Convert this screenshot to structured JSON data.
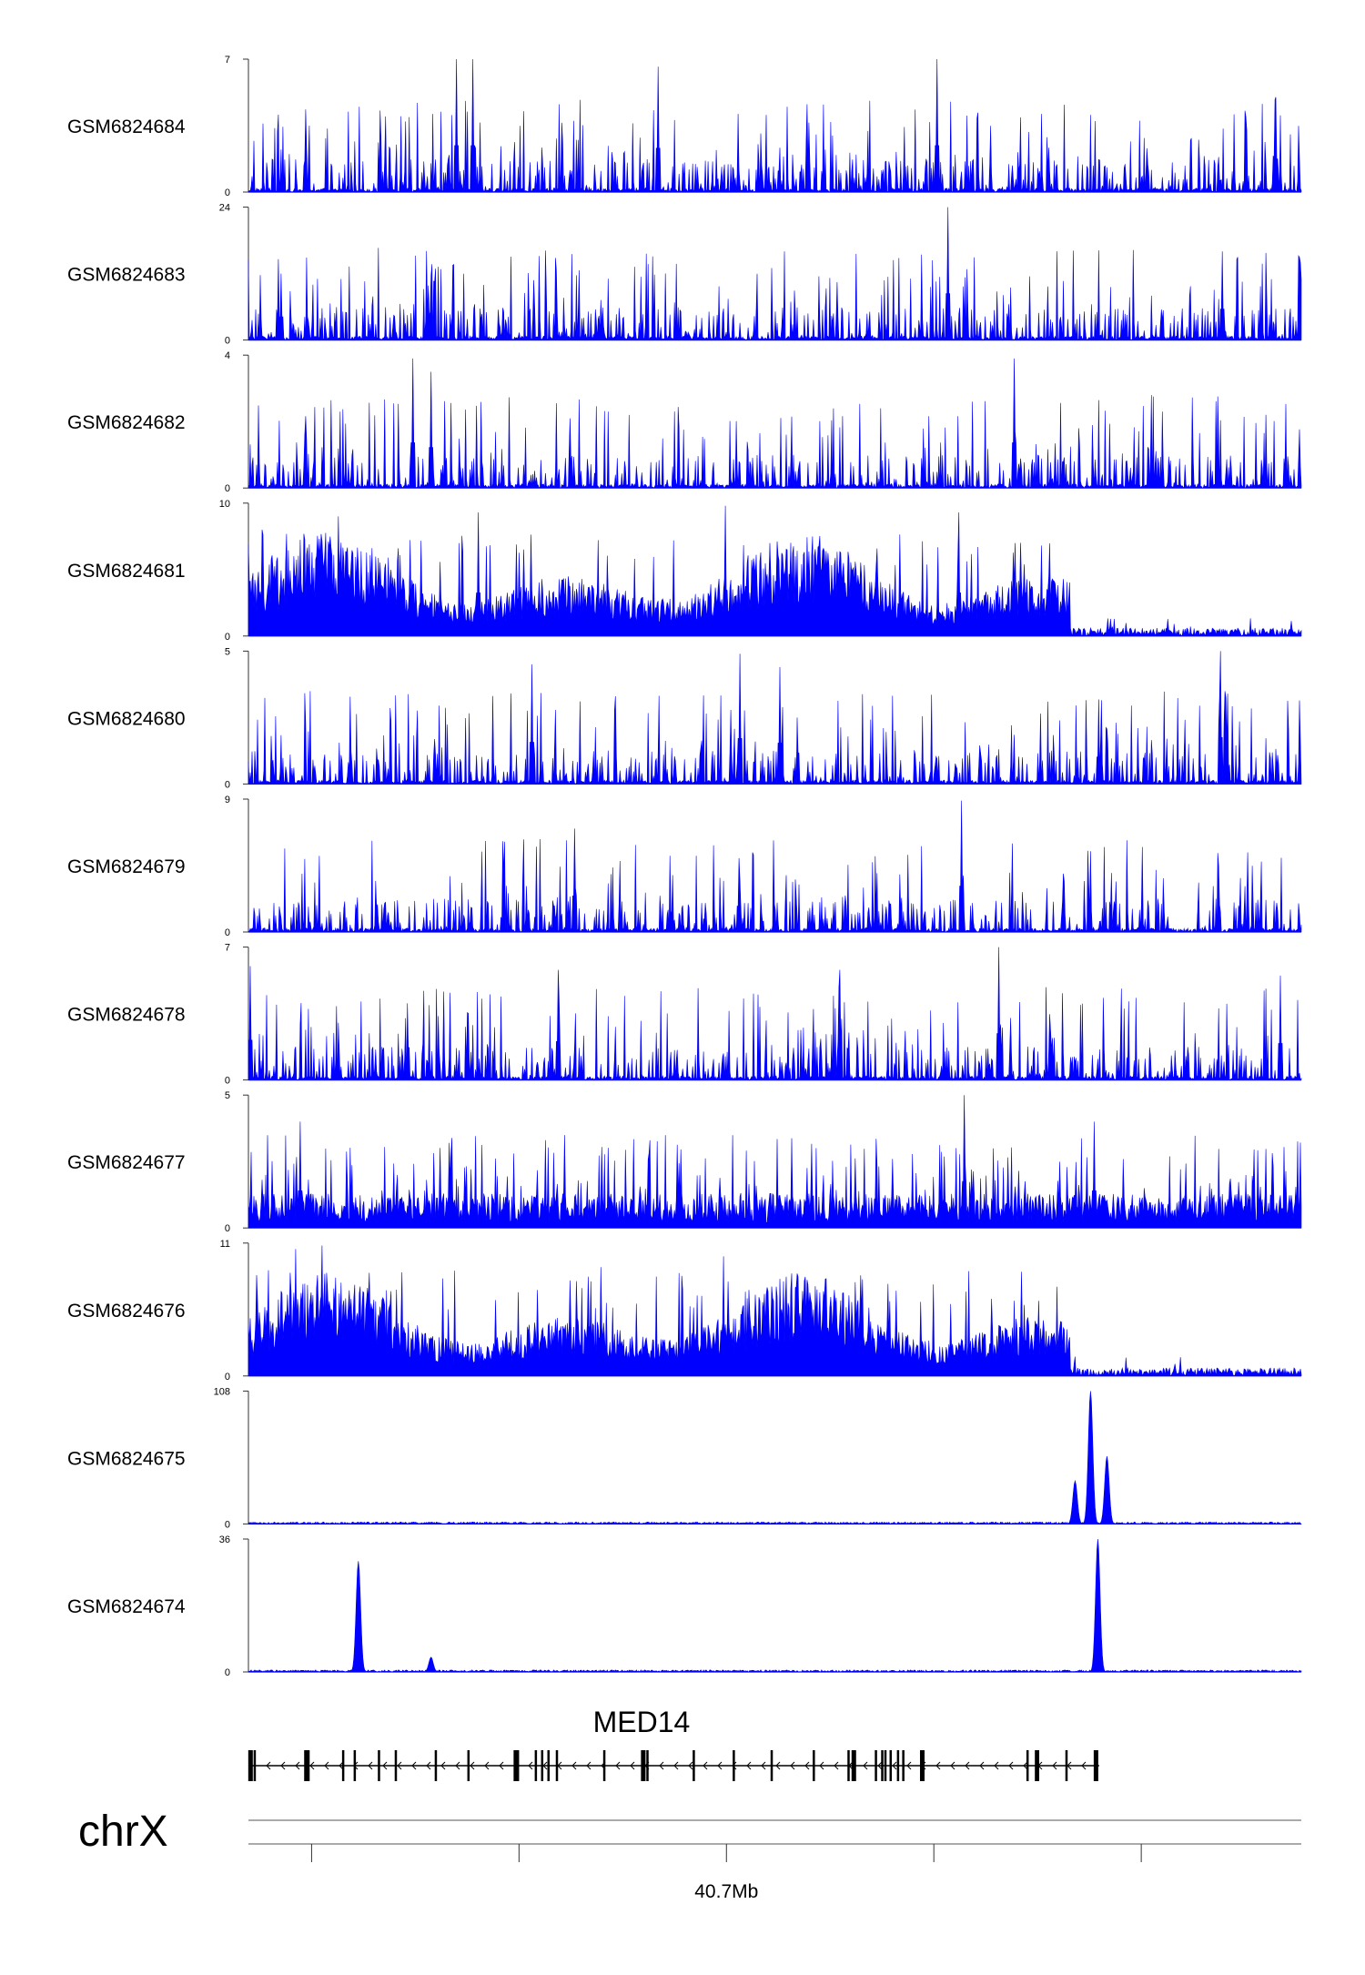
{
  "chart_data": {
    "type": "area",
    "colors": {
      "signal": "#0000ff",
      "axis": "#333333",
      "gene": "#000000"
    },
    "tracks": [
      {
        "name": "GSM6824684",
        "ymin": 0,
        "ymax": 7,
        "profile": "sparse",
        "peaks": [
          [
            0.198,
            7
          ],
          [
            0.213,
            7
          ],
          [
            0.389,
            6.6
          ],
          [
            0.654,
            7
          ],
          [
            0.976,
            5
          ]
        ]
      },
      {
        "name": "GSM6824683",
        "ymin": 0,
        "ymax": 24,
        "profile": "sparse",
        "peaks": [
          [
            0.031,
            12
          ],
          [
            0.664,
            24
          ],
          [
            0.925,
            16
          ]
        ]
      },
      {
        "name": "GSM6824682",
        "ymin": 0,
        "ymax": 4,
        "profile": "sparse",
        "peaks": [
          [
            0.156,
            3.9
          ],
          [
            0.173,
            3.5
          ],
          [
            0.727,
            3.9
          ]
        ]
      },
      {
        "name": "GSM6824681",
        "ymin": 0,
        "ymax": 10,
        "profile": "dense",
        "cutoff": 0.78,
        "peaks": [
          [
            0.013,
            8
          ],
          [
            0.085,
            9
          ],
          [
            0.218,
            9.3
          ],
          [
            0.453,
            9.8
          ],
          [
            0.675,
            9.3
          ],
          [
            0.728,
            7
          ]
        ]
      },
      {
        "name": "GSM6824680",
        "ymin": 0,
        "ymax": 5,
        "profile": "sparse",
        "peaks": [
          [
            0.269,
            4.5
          ],
          [
            0.467,
            4.9
          ],
          [
            0.505,
            4.4
          ],
          [
            0.923,
            5
          ]
        ]
      },
      {
        "name": "GSM6824679",
        "ymin": 0,
        "ymax": 9,
        "profile": "sparse",
        "peaks": [
          [
            0.31,
            7
          ],
          [
            0.677,
            8.9
          ],
          [
            0.466,
            5
          ]
        ]
      },
      {
        "name": "GSM6824678",
        "ymin": 0,
        "ymax": 7,
        "profile": "sparse",
        "peaks": [
          [
            0.002,
            6
          ],
          [
            0.294,
            5.8
          ],
          [
            0.562,
            5.8
          ],
          [
            0.713,
            7
          ],
          [
            0.98,
            5.5
          ]
        ]
      },
      {
        "name": "GSM6824677",
        "ymin": 0,
        "ymax": 5,
        "profile": "medium",
        "peaks": [
          [
            0.049,
            4
          ],
          [
            0.68,
            5
          ],
          [
            0.803,
            4
          ]
        ]
      },
      {
        "name": "GSM6824676",
        "ymin": 0,
        "ymax": 11,
        "profile": "dense",
        "cutoff": 0.78,
        "peaks": [
          [
            0.045,
            10.5
          ],
          [
            0.07,
            10.8
          ],
          [
            0.335,
            9
          ],
          [
            0.451,
            9.9
          ],
          [
            0.583,
            8
          ]
        ]
      },
      {
        "name": "GSM6824675",
        "ymin": 0,
        "ymax": 108,
        "profile": "flat",
        "peaks": [
          [
            0.8,
            108
          ],
          [
            0.815,
            55
          ],
          [
            0.785,
            35
          ]
        ]
      },
      {
        "name": "GSM6824674",
        "ymin": 0,
        "ymax": 36,
        "profile": "flat",
        "peaks": [
          [
            0.104,
            30
          ],
          [
            0.807,
            36
          ],
          [
            0.173,
            4
          ]
        ]
      }
    ],
    "gene": {
      "name": "MED14",
      "strand": "minus",
      "start_frac": 0.0,
      "end_frac": 0.808,
      "exons": [
        0.002,
        0.006,
        0.054,
        0.056,
        0.09,
        0.101,
        0.124,
        0.14,
        0.178,
        0.209,
        0.254,
        0.256,
        0.273,
        0.279,
        0.285,
        0.293,
        0.338,
        0.375,
        0.379,
        0.423,
        0.461,
        0.497,
        0.537,
        0.57,
        0.575,
        0.596,
        0.602,
        0.605,
        0.61,
        0.617,
        0.622,
        0.64,
        0.748,
        0.75,
        0.74,
        0.777,
        0.805
      ]
    },
    "chrom": "chrX",
    "axis": {
      "ticks": [
        0.06,
        0.257,
        0.454,
        0.651,
        0.848
      ],
      "label": "40.7Mb",
      "label_tick_index": 2
    }
  }
}
